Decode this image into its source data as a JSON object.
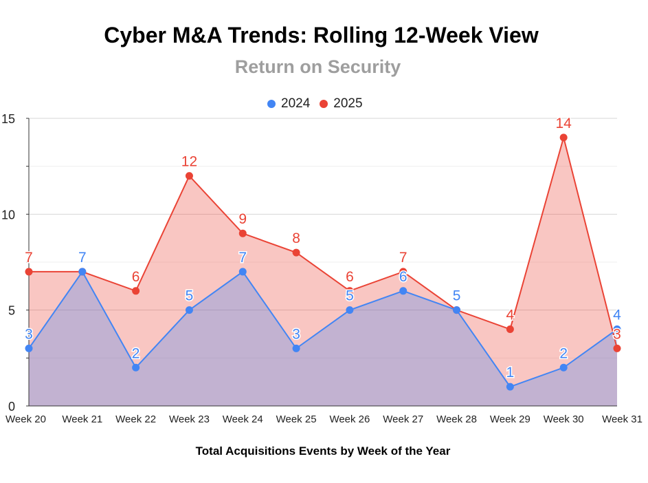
{
  "title": "Cyber M&A Trends: Rolling 12-Week View",
  "subtitle": "Return on Security",
  "colors": {
    "2024": "#4285f4",
    "2025": "#ea4335"
  },
  "chart_data": {
    "type": "area",
    "title": "Cyber M&A Trends: Rolling 12-Week View",
    "subtitle": "Return on Security",
    "xlabel": "Total Acquisitions Events by Week of the Year",
    "ylabel": "",
    "categories": [
      "Week 20",
      "Week 21",
      "Week 22",
      "Week 23",
      "Week 24",
      "Week 25",
      "Week 26",
      "Week 27",
      "Week 28",
      "Week 29",
      "Week 30",
      "Week 31"
    ],
    "series": [
      {
        "name": "2024",
        "values": [
          3,
          7,
          2,
          5,
          7,
          3,
          5,
          6,
          5,
          1,
          2,
          4
        ]
      },
      {
        "name": "2025",
        "values": [
          7,
          7,
          6,
          12,
          9,
          8,
          6,
          7,
          5,
          4,
          14,
          3
        ]
      }
    ],
    "ylim": [
      0,
      15
    ],
    "yticks": [
      "0",
      "5",
      "10",
      "15"
    ],
    "grid": true,
    "legend": "top"
  }
}
